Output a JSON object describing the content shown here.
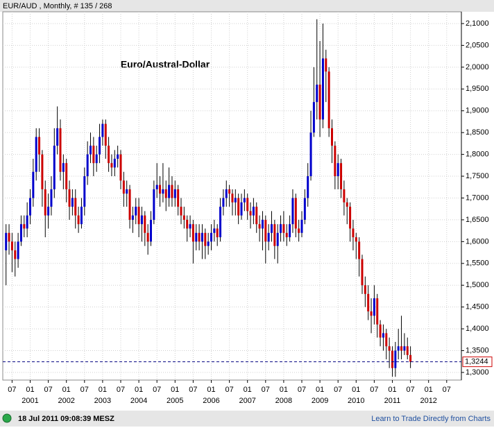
{
  "header": "EUR/AUD , Monthly, # 135 / 268",
  "footer": {
    "timestamp": "18 Jul 2011 09:08:39 MESZ",
    "link": "Learn to Trade Directly from Charts"
  },
  "chart_data": {
    "type": "candlestick",
    "title": "Euro/Austral-Dollar",
    "up_color": "#0000cc",
    "down_color": "#cc0000",
    "grid": true,
    "x": [
      "2000-05",
      "2000-06",
      "2000-07",
      "2000-08",
      "2000-09",
      "2000-10",
      "2000-11",
      "2000-12",
      "2001-01",
      "2001-02",
      "2001-03",
      "2001-04",
      "2001-05",
      "2001-06",
      "2001-07",
      "2001-08",
      "2001-09",
      "2001-10",
      "2001-11",
      "2001-12",
      "2002-01",
      "2002-02",
      "2002-03",
      "2002-04",
      "2002-05",
      "2002-06",
      "2002-07",
      "2002-08",
      "2002-09",
      "2002-10",
      "2002-11",
      "2002-12",
      "2003-01",
      "2003-02",
      "2003-03",
      "2003-04",
      "2003-05",
      "2003-06",
      "2003-07",
      "2003-08",
      "2003-09",
      "2003-10",
      "2003-11",
      "2003-12",
      "2004-01",
      "2004-02",
      "2004-03",
      "2004-04",
      "2004-05",
      "2004-06",
      "2004-07",
      "2004-08",
      "2004-09",
      "2004-10",
      "2004-11",
      "2004-12",
      "2005-01",
      "2005-02",
      "2005-03",
      "2005-04",
      "2005-05",
      "2005-06",
      "2005-07",
      "2005-08",
      "2005-09",
      "2005-10",
      "2005-11",
      "2005-12",
      "2006-01",
      "2006-02",
      "2006-03",
      "2006-04",
      "2006-05",
      "2006-06",
      "2006-07",
      "2006-08",
      "2006-09",
      "2006-10",
      "2006-11",
      "2006-12",
      "2007-01",
      "2007-02",
      "2007-03",
      "2007-04",
      "2007-05",
      "2007-06",
      "2007-07",
      "2007-08",
      "2007-09",
      "2007-10",
      "2007-11",
      "2007-12",
      "2008-01",
      "2008-02",
      "2008-03",
      "2008-04",
      "2008-05",
      "2008-06",
      "2008-07",
      "2008-08",
      "2008-09",
      "2008-10",
      "2008-11",
      "2008-12",
      "2009-01",
      "2009-02",
      "2009-03",
      "2009-04",
      "2009-05",
      "2009-06",
      "2009-07",
      "2009-08",
      "2009-09",
      "2009-10",
      "2009-11",
      "2009-12",
      "2010-01",
      "2010-02",
      "2010-03",
      "2010-04",
      "2010-05",
      "2010-06",
      "2010-07",
      "2010-08",
      "2010-09",
      "2010-10",
      "2010-11",
      "2010-12",
      "2011-01",
      "2011-02",
      "2011-03",
      "2011-04",
      "2011-05",
      "2011-06",
      "2011-07"
    ],
    "open": [
      1.58,
      1.62,
      1.6,
      1.58,
      1.56,
      1.6,
      1.64,
      1.63,
      1.66,
      1.7,
      1.76,
      1.84,
      1.8,
      1.72,
      1.66,
      1.68,
      1.72,
      1.82,
      1.86,
      1.76,
      1.78,
      1.72,
      1.68,
      1.7,
      1.66,
      1.64,
      1.68,
      1.75,
      1.8,
      1.82,
      1.78,
      1.8,
      1.84,
      1.87,
      1.82,
      1.78,
      1.77,
      1.79,
      1.8,
      1.74,
      1.71,
      1.72,
      1.65,
      1.66,
      1.68,
      1.64,
      1.66,
      1.62,
      1.6,
      1.65,
      1.72,
      1.73,
      1.71,
      1.72,
      1.7,
      1.73,
      1.7,
      1.72,
      1.68,
      1.66,
      1.65,
      1.63,
      1.64,
      1.6,
      1.62,
      1.6,
      1.62,
      1.59,
      1.6,
      1.62,
      1.63,
      1.61,
      1.68,
      1.7,
      1.72,
      1.71,
      1.69,
      1.7,
      1.66,
      1.69,
      1.7,
      1.67,
      1.66,
      1.68,
      1.64,
      1.63,
      1.65,
      1.6,
      1.62,
      1.64,
      1.59,
      1.62,
      1.64,
      1.62,
      1.61,
      1.64,
      1.7,
      1.63,
      1.62,
      1.65,
      1.7,
      1.75,
      1.85,
      1.92,
      1.96,
      1.88,
      2.02,
      1.99,
      1.86,
      1.82,
      1.75,
      1.78,
      1.72,
      1.69,
      1.68,
      1.63,
      1.61,
      1.6,
      1.56,
      1.5,
      1.48,
      1.44,
      1.43,
      1.47,
      1.41,
      1.38,
      1.39,
      1.36,
      1.35,
      1.31,
      1.35,
      1.36,
      1.35,
      1.36,
      1.34
    ],
    "high": [
      1.64,
      1.64,
      1.62,
      1.6,
      1.62,
      1.66,
      1.66,
      1.69,
      1.72,
      1.79,
      1.86,
      1.86,
      1.81,
      1.74,
      1.71,
      1.75,
      1.86,
      1.91,
      1.88,
      1.8,
      1.79,
      1.74,
      1.72,
      1.72,
      1.68,
      1.7,
      1.77,
      1.83,
      1.85,
      1.84,
      1.82,
      1.87,
      1.88,
      1.88,
      1.84,
      1.8,
      1.81,
      1.82,
      1.81,
      1.76,
      1.74,
      1.73,
      1.68,
      1.7,
      1.7,
      1.68,
      1.67,
      1.64,
      1.67,
      1.74,
      1.78,
      1.75,
      1.78,
      1.74,
      1.77,
      1.75,
      1.74,
      1.73,
      1.7,
      1.68,
      1.66,
      1.66,
      1.65,
      1.64,
      1.64,
      1.64,
      1.63,
      1.62,
      1.64,
      1.65,
      1.64,
      1.7,
      1.72,
      1.74,
      1.73,
      1.72,
      1.72,
      1.71,
      1.71,
      1.72,
      1.71,
      1.69,
      1.7,
      1.69,
      1.66,
      1.67,
      1.66,
      1.64,
      1.67,
      1.65,
      1.64,
      1.66,
      1.67,
      1.64,
      1.66,
      1.72,
      1.71,
      1.65,
      1.67,
      1.72,
      1.78,
      1.9,
      2.0,
      2.11,
      2.06,
      2.1,
      2.04,
      2.0,
      1.88,
      1.83,
      1.8,
      1.79,
      1.74,
      1.7,
      1.69,
      1.65,
      1.62,
      1.61,
      1.57,
      1.52,
      1.5,
      1.47,
      1.5,
      1.48,
      1.42,
      1.41,
      1.4,
      1.38,
      1.36,
      1.37,
      1.4,
      1.43,
      1.39,
      1.38,
      1.36
    ],
    "low": [
      1.5,
      1.57,
      1.53,
      1.52,
      1.54,
      1.59,
      1.61,
      1.61,
      1.64,
      1.68,
      1.74,
      1.76,
      1.68,
      1.61,
      1.63,
      1.66,
      1.7,
      1.8,
      1.74,
      1.72,
      1.69,
      1.65,
      1.66,
      1.63,
      1.62,
      1.63,
      1.66,
      1.73,
      1.78,
      1.75,
      1.76,
      1.78,
      1.82,
      1.79,
      1.76,
      1.75,
      1.75,
      1.77,
      1.72,
      1.68,
      1.68,
      1.63,
      1.62,
      1.64,
      1.61,
      1.6,
      1.59,
      1.57,
      1.59,
      1.64,
      1.7,
      1.68,
      1.69,
      1.67,
      1.68,
      1.68,
      1.68,
      1.66,
      1.64,
      1.63,
      1.6,
      1.61,
      1.55,
      1.58,
      1.58,
      1.56,
      1.56,
      1.57,
      1.58,
      1.6,
      1.59,
      1.6,
      1.66,
      1.68,
      1.68,
      1.66,
      1.66,
      1.64,
      1.65,
      1.67,
      1.65,
      1.63,
      1.64,
      1.62,
      1.6,
      1.58,
      1.55,
      1.58,
      1.6,
      1.56,
      1.55,
      1.6,
      1.6,
      1.59,
      1.6,
      1.62,
      1.61,
      1.6,
      1.61,
      1.64,
      1.68,
      1.74,
      1.84,
      1.88,
      1.84,
      1.86,
      1.92,
      1.84,
      1.78,
      1.72,
      1.72,
      1.7,
      1.66,
      1.64,
      1.6,
      1.58,
      1.56,
      1.52,
      1.48,
      1.45,
      1.42,
      1.39,
      1.41,
      1.38,
      1.36,
      1.35,
      1.33,
      1.31,
      1.29,
      1.29,
      1.33,
      1.33,
      1.34,
      1.33,
      1.31
    ],
    "close": [
      1.62,
      1.6,
      1.58,
      1.56,
      1.6,
      1.64,
      1.63,
      1.66,
      1.7,
      1.76,
      1.84,
      1.8,
      1.72,
      1.66,
      1.68,
      1.72,
      1.82,
      1.86,
      1.76,
      1.78,
      1.72,
      1.68,
      1.7,
      1.66,
      1.64,
      1.68,
      1.75,
      1.8,
      1.82,
      1.78,
      1.8,
      1.84,
      1.87,
      1.82,
      1.78,
      1.77,
      1.79,
      1.8,
      1.74,
      1.71,
      1.72,
      1.65,
      1.66,
      1.68,
      1.64,
      1.66,
      1.62,
      1.6,
      1.65,
      1.72,
      1.73,
      1.71,
      1.72,
      1.7,
      1.73,
      1.7,
      1.72,
      1.68,
      1.66,
      1.65,
      1.63,
      1.64,
      1.6,
      1.62,
      1.6,
      1.62,
      1.59,
      1.6,
      1.62,
      1.63,
      1.61,
      1.68,
      1.7,
      1.72,
      1.71,
      1.69,
      1.7,
      1.66,
      1.69,
      1.7,
      1.67,
      1.66,
      1.68,
      1.64,
      1.63,
      1.65,
      1.6,
      1.62,
      1.64,
      1.59,
      1.62,
      1.64,
      1.62,
      1.61,
      1.64,
      1.7,
      1.63,
      1.62,
      1.65,
      1.7,
      1.75,
      1.85,
      1.92,
      1.96,
      1.88,
      2.02,
      1.99,
      1.86,
      1.82,
      1.75,
      1.78,
      1.72,
      1.69,
      1.68,
      1.63,
      1.61,
      1.6,
      1.56,
      1.5,
      1.48,
      1.44,
      1.43,
      1.47,
      1.41,
      1.38,
      1.39,
      1.36,
      1.35,
      1.31,
      1.35,
      1.36,
      1.35,
      1.36,
      1.34,
      1.3244
    ],
    "last_price": {
      "value": 1.3244,
      "label": "1,3244"
    },
    "ylim": [
      1.2825,
      2.127
    ],
    "yticks": [
      {
        "value": 1.3,
        "label": "1,3000"
      },
      {
        "value": 1.35,
        "label": "1,3500"
      },
      {
        "value": 1.4,
        "label": "1,4000"
      },
      {
        "value": 1.45,
        "label": "1,4500"
      },
      {
        "value": 1.5,
        "label": "1,5000"
      },
      {
        "value": 1.55,
        "label": "1,5500"
      },
      {
        "value": 1.6,
        "label": "1,6000"
      },
      {
        "value": 1.65,
        "label": "1,6500"
      },
      {
        "value": 1.7,
        "label": "1,7000"
      },
      {
        "value": 1.75,
        "label": "1,7500"
      },
      {
        "value": 1.8,
        "label": "1,8000"
      },
      {
        "value": 1.85,
        "label": "1,8500"
      },
      {
        "value": 1.9,
        "label": "1,9000"
      },
      {
        "value": 1.95,
        "label": "1,9500"
      },
      {
        "value": 2.0,
        "label": "2,0000"
      },
      {
        "value": 2.05,
        "label": "2,0500"
      },
      {
        "value": 2.1,
        "label": "2,1000"
      }
    ],
    "xticks": [
      {
        "value": "2000-07",
        "label": "07"
      },
      {
        "value": "2001-01",
        "label": "01"
      },
      {
        "value": "2001-07",
        "label": "07"
      },
      {
        "value": "2002-01",
        "label": "01"
      },
      {
        "value": "2002-07",
        "label": "07"
      },
      {
        "value": "2003-01",
        "label": "01"
      },
      {
        "value": "2003-07",
        "label": "07"
      },
      {
        "value": "2004-01",
        "label": "01"
      },
      {
        "value": "2004-07",
        "label": "07"
      },
      {
        "value": "2005-01",
        "label": "01"
      },
      {
        "value": "2005-07",
        "label": "07"
      },
      {
        "value": "2006-01",
        "label": "01"
      },
      {
        "value": "2006-07",
        "label": "07"
      },
      {
        "value": "2007-01",
        "label": "01"
      },
      {
        "value": "2007-07",
        "label": "07"
      },
      {
        "value": "2008-01",
        "label": "01"
      },
      {
        "value": "2008-07",
        "label": "07"
      },
      {
        "value": "2009-01",
        "label": "01"
      },
      {
        "value": "2009-07",
        "label": "07"
      },
      {
        "value": "2010-01",
        "label": "01"
      },
      {
        "value": "2010-07",
        "label": "07"
      },
      {
        "value": "2011-01",
        "label": "01"
      },
      {
        "value": "2011-07",
        "label": "07"
      },
      {
        "value": "2012-01",
        "label": "01"
      },
      {
        "value": "2012-07",
        "label": "07"
      }
    ],
    "year_labels": [
      {
        "value": "2001-01",
        "label": "2001"
      },
      {
        "value": "2002-01",
        "label": "2002"
      },
      {
        "value": "2003-01",
        "label": "2003"
      },
      {
        "value": "2004-01",
        "label": "2004"
      },
      {
        "value": "2005-01",
        "label": "2005"
      },
      {
        "value": "2006-01",
        "label": "2006"
      },
      {
        "value": "2007-01",
        "label": "2007"
      },
      {
        "value": "2008-01",
        "label": "2008"
      },
      {
        "value": "2009-01",
        "label": "2009"
      },
      {
        "value": "2010-01",
        "label": "2010"
      },
      {
        "value": "2011-01",
        "label": "2011"
      },
      {
        "value": "2012-01",
        "label": "2012"
      }
    ]
  }
}
